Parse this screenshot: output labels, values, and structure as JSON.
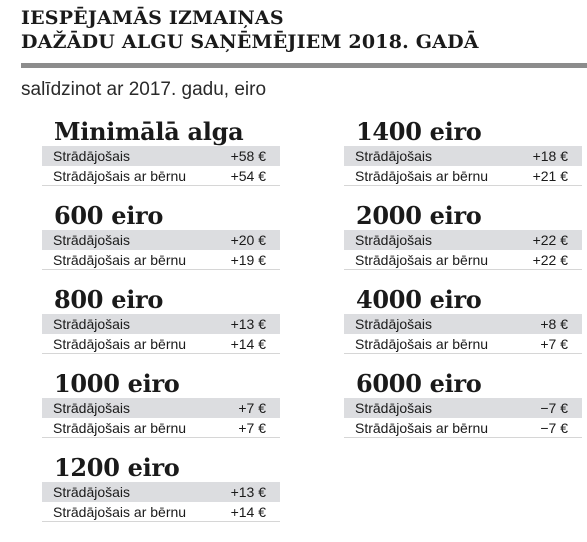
{
  "title": {
    "line1": "IESPĒJAMĀS IZMAIŅAS",
    "line2": "DAŽĀDU ALGU SAŅĒMĒJIEM 2018. GADĀ"
  },
  "subtitle": "salīdzinot ar 2017. gadu, eiro",
  "blocks": [
    {
      "heading": "Minimālā alga",
      "rows": [
        {
          "label": "Strādājošais",
          "value": "+58 €"
        },
        {
          "label": "Strādājošais ar bērnu",
          "value": "+54 €"
        }
      ]
    },
    {
      "heading": "600 eiro",
      "rows": [
        {
          "label": "Strādājošais",
          "value": "+20 €"
        },
        {
          "label": "Strādājošais ar bērnu",
          "value": "+19 €"
        }
      ]
    },
    {
      "heading": "800 eiro",
      "rows": [
        {
          "label": "Strādājošais",
          "value": "+13 €"
        },
        {
          "label": "Strādājošais ar bērnu",
          "value": "+14 €"
        }
      ]
    },
    {
      "heading": "1000 eiro",
      "rows": [
        {
          "label": "Strādājošais",
          "value": "+7 €"
        },
        {
          "label": "Strādājošais ar bērnu",
          "value": "+7 €"
        }
      ]
    },
    {
      "heading": "1200 eiro",
      "rows": [
        {
          "label": "Strādājošais",
          "value": "+13 €"
        },
        {
          "label": "Strādājošais ar bērnu",
          "value": "+14 €"
        }
      ]
    },
    {
      "heading": "1400 eiro",
      "rows": [
        {
          "label": "Strādājošais",
          "value": "+18 €"
        },
        {
          "label": "Strādājošais ar bērnu",
          "value": "+21 €"
        }
      ]
    },
    {
      "heading": "2000 eiro",
      "rows": [
        {
          "label": "Strādājošais",
          "value": "+22 €"
        },
        {
          "label": "Strādājošais ar bērnu",
          "value": "+22 €"
        }
      ]
    },
    {
      "heading": "4000 eiro",
      "rows": [
        {
          "label": "Strādājošais",
          "value": "+8 €"
        },
        {
          "label": "Strādājošais ar bērnu",
          "value": "+7 €"
        }
      ]
    },
    {
      "heading": "6000 eiro",
      "rows": [
        {
          "label": "Strādājošais",
          "value": "−7 €"
        },
        {
          "label": "Strādājošais ar bērnu",
          "value": "−7 €"
        }
      ]
    }
  ]
}
